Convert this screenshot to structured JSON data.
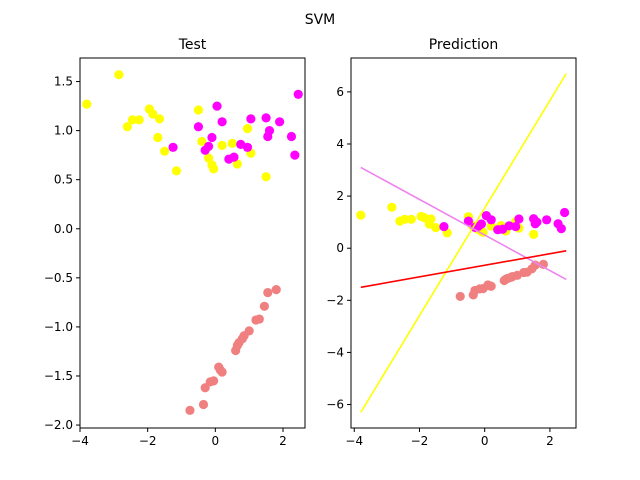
{
  "figure": {
    "suptitle": "SVM"
  },
  "chart_data": [
    {
      "type": "scatter",
      "title": "Test",
      "xlabel": "",
      "ylabel": "",
      "xlim": [
        -4.0,
        2.65
      ],
      "ylim": [
        -2.03,
        1.74
      ],
      "xticks": [
        -4,
        -2,
        0,
        2
      ],
      "yticks": [
        -2.0,
        -1.5,
        -1.0,
        -0.5,
        0.0,
        0.5,
        1.0,
        1.5
      ],
      "xtick_labels": [
        "−4",
        "−2",
        "0",
        "2"
      ],
      "ytick_labels": [
        "−2.0",
        "−1.5",
        "−1.0",
        "−0.5",
        "0.0",
        "0.5",
        "1.0",
        "1.5"
      ],
      "grid": false,
      "series": [
        {
          "color": "#ffff00",
          "points": [
            [
              -3.8,
              1.27
            ],
            [
              -2.85,
              1.57
            ],
            [
              -2.6,
              1.04
            ],
            [
              -2.45,
              1.11
            ],
            [
              -2.25,
              1.11
            ],
            [
              -1.95,
              1.22
            ],
            [
              -1.85,
              1.17
            ],
            [
              -1.7,
              0.93
            ],
            [
              -1.65,
              1.12
            ],
            [
              -1.5,
              0.79
            ],
            [
              -1.15,
              0.59
            ],
            [
              -0.5,
              1.21
            ],
            [
              -0.4,
              0.89
            ],
            [
              -0.2,
              0.72
            ],
            [
              -0.1,
              0.65
            ],
            [
              -0.05,
              0.61
            ],
            [
              0.2,
              0.85
            ],
            [
              0.5,
              0.87
            ],
            [
              0.65,
              0.66
            ],
            [
              0.95,
              1.02
            ],
            [
              1.05,
              0.77
            ],
            [
              1.5,
              0.53
            ]
          ]
        },
        {
          "color": "#ff00ff",
          "points": [
            [
              -1.25,
              0.83
            ],
            [
              -0.5,
              1.04
            ],
            [
              -0.3,
              0.8
            ],
            [
              -0.2,
              0.84
            ],
            [
              -0.1,
              0.93
            ],
            [
              0.05,
              1.25
            ],
            [
              0.2,
              1.09
            ],
            [
              0.4,
              0.71
            ],
            [
              0.55,
              0.73
            ],
            [
              0.75,
              0.86
            ],
            [
              0.95,
              0.83
            ],
            [
              1.05,
              1.12
            ],
            [
              1.5,
              1.13
            ],
            [
              1.55,
              0.94
            ],
            [
              1.6,
              1.0
            ],
            [
              1.9,
              1.09
            ],
            [
              2.25,
              0.94
            ],
            [
              2.35,
              0.75
            ],
            [
              2.45,
              1.37
            ]
          ]
        },
        {
          "color": "#f08080",
          "points": [
            [
              -0.75,
              -1.85
            ],
            [
              -0.35,
              -1.79
            ],
            [
              -0.3,
              -1.62
            ],
            [
              -0.15,
              -1.56
            ],
            [
              -0.05,
              -1.55
            ],
            [
              0.1,
              -1.41
            ],
            [
              0.15,
              -1.44
            ],
            [
              0.2,
              -1.46
            ],
            [
              0.6,
              -1.24
            ],
            [
              0.65,
              -1.19
            ],
            [
              0.7,
              -1.16
            ],
            [
              0.8,
              -1.12
            ],
            [
              0.85,
              -1.09
            ],
            [
              1.0,
              -1.04
            ],
            [
              1.2,
              -0.93
            ],
            [
              1.3,
              -0.92
            ],
            [
              1.45,
              -0.79
            ],
            [
              1.55,
              -0.65
            ],
            [
              1.8,
              -0.62
            ]
          ]
        }
      ]
    },
    {
      "type": "scatter",
      "title": "Prediction",
      "xlabel": "",
      "ylabel": "",
      "xlim": [
        -4.1,
        2.8
      ],
      "ylim": [
        -6.9,
        7.3
      ],
      "xticks": [
        -4,
        -2,
        0,
        2
      ],
      "yticks": [
        -6,
        -4,
        -2,
        0,
        2,
        4,
        6
      ],
      "xtick_labels": [
        "−4",
        "−2",
        "0",
        "2"
      ],
      "ytick_labels": [
        "−6",
        "−4",
        "−2",
        "0",
        "2",
        "4",
        "6"
      ],
      "grid": false,
      "series": [
        {
          "color": "#ffff00",
          "points": [
            [
              -3.8,
              1.27
            ],
            [
              -2.85,
              1.57
            ],
            [
              -2.6,
              1.04
            ],
            [
              -2.45,
              1.11
            ],
            [
              -2.25,
              1.11
            ],
            [
              -1.95,
              1.22
            ],
            [
              -1.85,
              1.17
            ],
            [
              -1.7,
              0.93
            ],
            [
              -1.65,
              1.12
            ],
            [
              -1.5,
              0.79
            ],
            [
              -1.15,
              0.59
            ],
            [
              -0.5,
              1.21
            ],
            [
              -0.4,
              0.89
            ],
            [
              -0.2,
              0.72
            ],
            [
              -0.1,
              0.65
            ],
            [
              -0.05,
              0.61
            ],
            [
              0.2,
              0.85
            ],
            [
              0.5,
              0.87
            ],
            [
              0.65,
              0.66
            ],
            [
              0.95,
              1.02
            ],
            [
              1.05,
              0.77
            ],
            [
              1.5,
              0.53
            ]
          ]
        },
        {
          "color": "#ff00ff",
          "points": [
            [
              -1.25,
              0.83
            ],
            [
              -0.5,
              1.04
            ],
            [
              -0.3,
              0.8
            ],
            [
              -0.2,
              0.84
            ],
            [
              -0.1,
              0.93
            ],
            [
              0.05,
              1.25
            ],
            [
              0.2,
              1.09
            ],
            [
              0.4,
              0.71
            ],
            [
              0.55,
              0.73
            ],
            [
              0.75,
              0.86
            ],
            [
              0.95,
              0.83
            ],
            [
              1.05,
              1.12
            ],
            [
              1.5,
              1.13
            ],
            [
              1.55,
              0.94
            ],
            [
              1.6,
              1.0
            ],
            [
              1.9,
              1.09
            ],
            [
              2.25,
              0.94
            ],
            [
              2.35,
              0.75
            ],
            [
              2.45,
              1.37
            ]
          ]
        },
        {
          "color": "#f08080",
          "points": [
            [
              -0.75,
              -1.85
            ],
            [
              -0.35,
              -1.79
            ],
            [
              -0.3,
              -1.62
            ],
            [
              -0.15,
              -1.56
            ],
            [
              -0.05,
              -1.55
            ],
            [
              0.1,
              -1.41
            ],
            [
              0.15,
              -1.44
            ],
            [
              0.2,
              -1.46
            ],
            [
              0.6,
              -1.24
            ],
            [
              0.65,
              -1.19
            ],
            [
              0.7,
              -1.16
            ],
            [
              0.8,
              -1.12
            ],
            [
              0.85,
              -1.09
            ],
            [
              1.0,
              -1.04
            ],
            [
              1.2,
              -0.93
            ],
            [
              1.3,
              -0.92
            ],
            [
              1.45,
              -0.79
            ],
            [
              1.55,
              -0.65
            ],
            [
              1.8,
              -0.62
            ]
          ]
        }
      ],
      "lines": [
        {
          "color": "#ffff00",
          "from": [
            -3.8,
            -6.3
          ],
          "to": [
            2.5,
            6.7
          ]
        },
        {
          "color": "#ee82ee",
          "from": [
            -3.8,
            3.1
          ],
          "to": [
            2.5,
            -1.2
          ]
        },
        {
          "color": "#ff0000",
          "from": [
            -3.8,
            -1.5
          ],
          "to": [
            2.5,
            -0.1
          ]
        }
      ]
    }
  ]
}
